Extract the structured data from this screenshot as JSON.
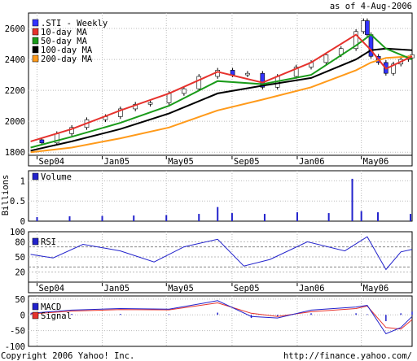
{
  "header": {
    "as_of": "as of  4-Aug-2006"
  },
  "footer": {
    "copyright": "Copyright 2006 Yahoo! Inc.",
    "url": "http://finance.yahoo.com/"
  },
  "colors": {
    "price_up": "#ffffff",
    "price_down": "#3333ff",
    "ma10": "#e6322d",
    "ma50": "#1a9b1a",
    "ma100": "#000000",
    "ma200": "#ff9a1a",
    "volume": "#2222cc",
    "rsi": "#2222cc",
    "macd": "#2222cc",
    "signal": "#e6322d",
    "grid": "#bbbbbb"
  },
  "chart_data": [
    {
      "type": "line",
      "title": "",
      "xlabel": "",
      "ylabel": "",
      "x_tick_labels": [
        "Sep04",
        "Jan05",
        "May05",
        "Sep05",
        "Jan06",
        "May06"
      ],
      "x_tick_dates": [
        "2004-09-01",
        "2005-01-01",
        "2005-05-01",
        "2005-09-01",
        "2006-01-01",
        "2006-05-01"
      ],
      "x_range": [
        "2004-08-16",
        "2006-08-04"
      ],
      "ylim": [
        1780,
        2700
      ],
      "yticks": [
        1800,
        2000,
        2200,
        2400,
        2600
      ],
      "grid": true,
      "legend_position": "top-left",
      "legend": [
        {
          "label": ".STI - Weekly",
          "color": "#3333ff"
        },
        {
          "label": "10-day MA",
          "color": "#e6322d"
        },
        {
          "label": "50-day MA",
          "color": "#1a9b1a"
        },
        {
          "label": "100-day MA",
          "color": "#000000"
        },
        {
          "label": "200-day MA",
          "color": "#ff9a1a"
        }
      ],
      "series": [
        {
          "name": ".STI - Weekly",
          "style": "candlestick",
          "x": [
            "2004-08-20",
            "2004-09-10",
            "2004-10-08",
            "2004-11-05",
            "2004-12-03",
            "2005-01-07",
            "2005-02-04",
            "2005-03-04",
            "2005-04-01",
            "2005-05-06",
            "2005-06-03",
            "2005-07-01",
            "2005-08-05",
            "2005-09-02",
            "2005-09-30",
            "2005-10-28",
            "2005-11-25",
            "2005-12-30",
            "2006-01-27",
            "2006-02-24",
            "2006-03-24",
            "2006-04-21",
            "2006-05-05",
            "2006-05-12",
            "2006-05-19",
            "2006-06-02",
            "2006-06-16",
            "2006-06-30",
            "2006-07-14",
            "2006-07-28",
            "2006-08-04"
          ],
          "values": [
            1880,
            1860,
            1920,
            1960,
            2010,
            2030,
            2080,
            2110,
            2120,
            2180,
            2210,
            2290,
            2330,
            2300,
            2310,
            2220,
            2290,
            2350,
            2380,
            2430,
            2470,
            2580,
            2650,
            2560,
            2420,
            2380,
            2310,
            2370,
            2400,
            2410,
            2430
          ]
        },
        {
          "name": "10-day MA",
          "x": [
            "2004-08-20",
            "2004-11-05",
            "2005-02-04",
            "2005-05-06",
            "2005-08-05",
            "2005-10-28",
            "2006-01-27",
            "2006-04-21",
            "2006-05-19",
            "2006-06-16",
            "2006-08-04"
          ],
          "values": [
            1870,
            1950,
            2070,
            2180,
            2320,
            2250,
            2380,
            2560,
            2460,
            2340,
            2420
          ]
        },
        {
          "name": "50-day MA",
          "x": [
            "2004-08-20",
            "2004-11-05",
            "2005-02-04",
            "2005-05-06",
            "2005-08-05",
            "2005-10-28",
            "2006-01-27",
            "2006-04-21",
            "2006-05-19",
            "2006-06-16",
            "2006-08-04"
          ],
          "values": [
            1830,
            1900,
            1990,
            2100,
            2260,
            2240,
            2300,
            2490,
            2560,
            2470,
            2400
          ]
        },
        {
          "name": "100-day MA",
          "x": [
            "2004-08-20",
            "2004-11-05",
            "2005-02-04",
            "2005-05-06",
            "2005-08-05",
            "2005-10-28",
            "2006-01-27",
            "2006-04-21",
            "2006-05-19",
            "2006-06-16",
            "2006-08-04"
          ],
          "values": [
            1810,
            1870,
            1950,
            2050,
            2180,
            2230,
            2280,
            2400,
            2460,
            2470,
            2460
          ]
        },
        {
          "name": "200-day MA",
          "x": [
            "2004-08-20",
            "2004-11-05",
            "2005-02-04",
            "2005-05-06",
            "2005-08-05",
            "2005-10-28",
            "2006-01-27",
            "2006-04-21",
            "2006-05-19",
            "2006-06-16",
            "2006-08-04"
          ],
          "values": [
            1800,
            1830,
            1890,
            1960,
            2070,
            2140,
            2220,
            2330,
            2380,
            2410,
            2420
          ]
        }
      ]
    },
    {
      "type": "bar",
      "title": "",
      "ylabel": "Billions",
      "x_tick_labels": [
        "Sep04",
        "Jan05",
        "May05",
        "Sep05",
        "Jan06",
        "May06"
      ],
      "x_range": [
        "2004-08-16",
        "2006-08-04"
      ],
      "ylim": [
        0,
        1.25
      ],
      "yticks": [
        0,
        0.5,
        1.0
      ],
      "legend": [
        {
          "label": "Volume",
          "color": "#2222cc"
        }
      ],
      "series": [
        {
          "name": "Volume",
          "x": [
            "2004-09-01",
            "2004-11-01",
            "2005-01-01",
            "2005-03-01",
            "2005-05-01",
            "2005-07-01",
            "2005-08-05",
            "2005-09-01",
            "2005-11-01",
            "2006-01-01",
            "2006-03-01",
            "2006-04-14",
            "2006-05-01",
            "2006-06-01",
            "2006-08-01"
          ],
          "values": [
            0.1,
            0.12,
            0.13,
            0.14,
            0.15,
            0.18,
            0.35,
            0.2,
            0.18,
            0.22,
            0.2,
            1.05,
            0.25,
            0.22,
            0.18
          ]
        }
      ]
    },
    {
      "type": "line",
      "title": "",
      "x_tick_labels": [
        "Sep04",
        "Jan05",
        "May05",
        "Sep05",
        "Jan06",
        "May06"
      ],
      "x_range": [
        "2004-08-16",
        "2006-08-04"
      ],
      "ylim": [
        0,
        100
      ],
      "yticks": [
        20,
        50,
        80,
        100
      ],
      "reference_lines": [
        30,
        70
      ],
      "legend": [
        {
          "label": "RSI",
          "color": "#2222cc"
        }
      ],
      "series": [
        {
          "name": "RSI",
          "x": [
            "2004-08-20",
            "2004-10-01",
            "2004-11-26",
            "2005-02-04",
            "2005-04-08",
            "2005-06-03",
            "2005-08-05",
            "2005-09-23",
            "2005-11-11",
            "2006-01-20",
            "2006-03-31",
            "2006-05-12",
            "2006-06-16",
            "2006-07-14",
            "2006-08-04"
          ],
          "values": [
            55,
            48,
            75,
            62,
            40,
            70,
            85,
            32,
            45,
            80,
            62,
            90,
            25,
            60,
            65
          ]
        }
      ]
    },
    {
      "type": "line",
      "title": "",
      "x_tick_labels": [
        "Sep04",
        "Jan05",
        "May05",
        "Sep05",
        "Jan06",
        "May06"
      ],
      "x_range": [
        "2004-08-16",
        "2006-08-04"
      ],
      "ylim": [
        -100,
        60
      ],
      "yticks": [
        -100,
        -50,
        0,
        50
      ],
      "legend": [
        {
          "label": "MACD",
          "color": "#2222cc"
        },
        {
          "label": "Signal",
          "color": "#e6322d"
        }
      ],
      "series": [
        {
          "name": "MACD",
          "x": [
            "2004-08-20",
            "2004-11-05",
            "2005-02-04",
            "2005-05-06",
            "2005-08-05",
            "2005-10-07",
            "2005-11-25",
            "2006-01-27",
            "2006-04-21",
            "2006-05-12",
            "2006-06-16",
            "2006-07-14",
            "2006-08-04"
          ],
          "values": [
            5,
            15,
            20,
            18,
            45,
            -5,
            -10,
            15,
            25,
            30,
            -60,
            -40,
            -5
          ]
        },
        {
          "name": "Signal",
          "x": [
            "2004-08-20",
            "2004-11-05",
            "2005-02-04",
            "2005-05-06",
            "2005-08-05",
            "2005-10-07",
            "2005-11-25",
            "2006-01-27",
            "2006-04-21",
            "2006-05-12",
            "2006-06-16",
            "2006-07-14",
            "2006-08-04"
          ],
          "values": [
            3,
            12,
            17,
            16,
            38,
            5,
            -5,
            10,
            20,
            28,
            -40,
            -45,
            -15
          ]
        }
      ]
    }
  ]
}
